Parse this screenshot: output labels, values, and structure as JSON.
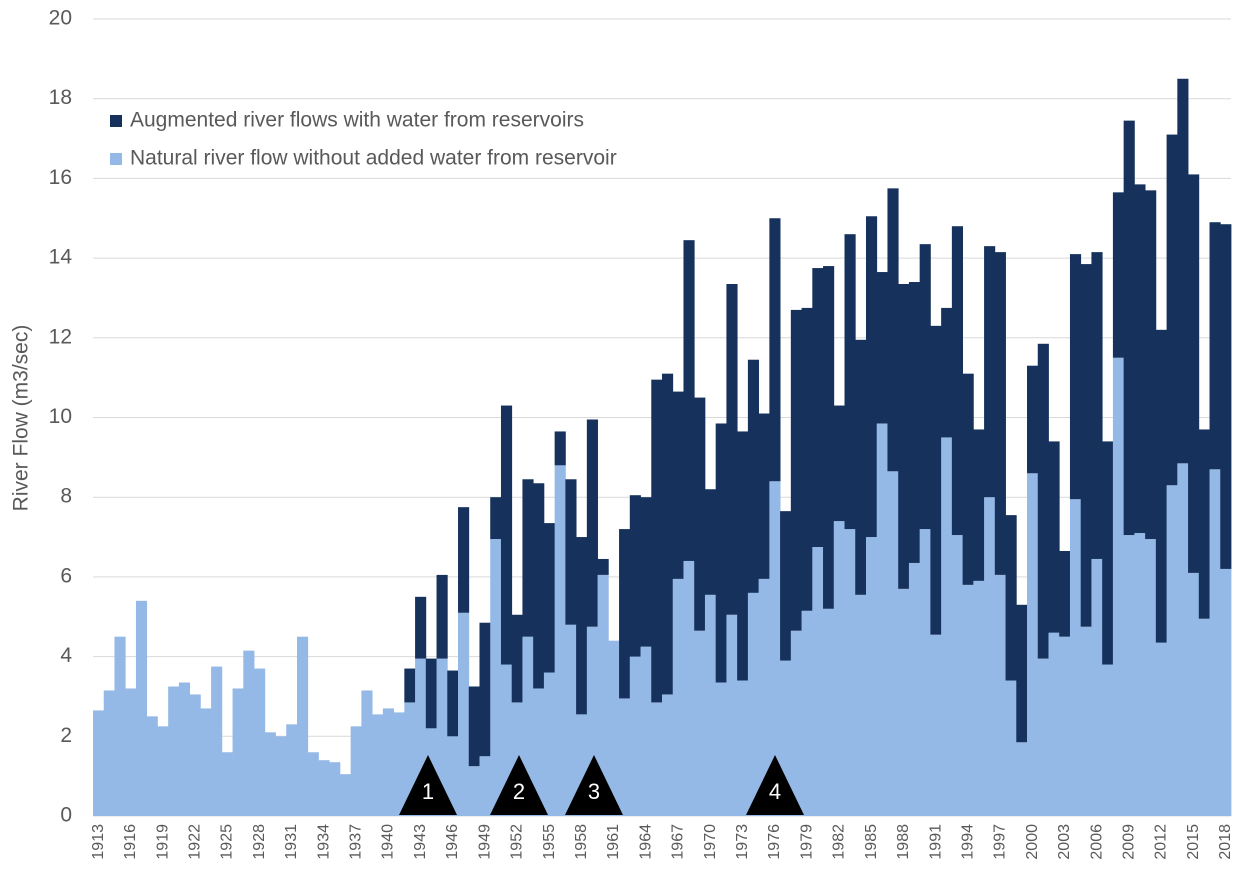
{
  "chart_data": {
    "type": "stacked_bar",
    "y_label": "River Flow (m3/sec)",
    "categories": [
      "1913",
      null,
      null,
      "1916",
      null,
      null,
      "1919",
      null,
      null,
      "1922",
      null,
      null,
      "1925",
      null,
      null,
      "1928",
      null,
      null,
      "1931",
      null,
      null,
      "1934",
      null,
      null,
      "1937",
      null,
      null,
      "1940",
      null,
      null,
      "1943",
      null,
      null,
      "1946",
      null,
      null,
      "1949",
      null,
      null,
      "1952",
      null,
      null,
      "1955",
      null,
      null,
      "1958",
      null,
      null,
      "1961",
      null,
      null,
      "1964",
      null,
      null,
      "1967",
      null,
      null,
      "1970",
      null,
      null,
      "1973",
      null,
      null,
      "1976",
      null,
      null,
      "1979",
      null,
      null,
      "1982",
      null,
      null,
      "1985",
      null,
      null,
      "1988",
      null,
      null,
      "1991",
      null,
      null,
      "1994",
      null,
      null,
      "1997",
      null,
      null,
      "2000",
      null,
      null,
      "2003",
      null,
      null,
      "2006",
      null,
      null,
      "2009",
      null,
      null,
      "2012",
      null,
      null,
      "2015",
      null,
      null,
      "2018"
    ],
    "series": [
      {
        "name": "Natural river flow without added water from reservoir",
        "color": "#95b9e7",
        "values": [
          2.65,
          3.15,
          4.5,
          3.2,
          5.4,
          2.5,
          2.25,
          3.25,
          3.35,
          3.05,
          2.7,
          3.75,
          1.6,
          3.2,
          4.15,
          3.7,
          2.1,
          2.0,
          2.3,
          4.5,
          1.6,
          1.4,
          1.35,
          1.05,
          2.25,
          3.15,
          2.55,
          2.7,
          2.6,
          2.85,
          3.95,
          2.2,
          3.95,
          2.0,
          5.1,
          1.25,
          1.5,
          6.95,
          3.8,
          2.85,
          4.5,
          3.2,
          3.6,
          8.8,
          4.8,
          2.55,
          4.75,
          6.05,
          4.4,
          2.95,
          4.0,
          4.25,
          2.85,
          3.05,
          5.95,
          6.4,
          4.65,
          5.55,
          3.35,
          5.05,
          3.4,
          5.6,
          5.95,
          8.4,
          3.9,
          4.65,
          5.15,
          6.75,
          5.2,
          7.4,
          7.2,
          5.55,
          7.0,
          9.85,
          8.65,
          5.7,
          6.35,
          7.2,
          4.55,
          9.5,
          7.05,
          5.8,
          5.9,
          8.0,
          6.05,
          3.4,
          1.85,
          8.6,
          3.95,
          4.6,
          4.5,
          7.95,
          4.75,
          6.45,
          3.8,
          11.5,
          7.05,
          7.1,
          6.95,
          4.35,
          8.3,
          8.85,
          6.1,
          4.95,
          8.7,
          6.2
        ]
      },
      {
        "name": "Augmented river flows with water from reservoirs",
        "color": "#16325c",
        "values": [
          0,
          0,
          0,
          0,
          0,
          0,
          0,
          0,
          0,
          0,
          0,
          0,
          0,
          0,
          0,
          0,
          0,
          0,
          0,
          0,
          0,
          0,
          0,
          0,
          0,
          0,
          0,
          0,
          0,
          0.85,
          1.55,
          1.75,
          2.1,
          1.65,
          2.65,
          2.0,
          3.35,
          1.05,
          6.5,
          2.2,
          3.95,
          5.15,
          3.75,
          0.85,
          3.65,
          4.45,
          5.2,
          0.4,
          0,
          4.25,
          4.05,
          3.75,
          8.1,
          8.05,
          4.7,
          8.05,
          5.85,
          2.65,
          6.5,
          8.3,
          6.25,
          5.85,
          4.15,
          6.6,
          3.75,
          8.05,
          7.6,
          7.0,
          8.6,
          2.9,
          7.4,
          6.4,
          8.05,
          3.8,
          7.1,
          7.65,
          7.05,
          7.15,
          7.75,
          3.25,
          7.75,
          5.3,
          3.8,
          6.3,
          8.1,
          4.15,
          3.45,
          2.7,
          7.9,
          4.8,
          2.15,
          6.15,
          9.1,
          7.7,
          5.6,
          4.15,
          10.4,
          8.75,
          8.75,
          7.85,
          8.8,
          9.65,
          10.0,
          4.75,
          6.2,
          8.65
        ]
      }
    ],
    "ylim": [
      0,
      20
    ],
    "yticks": [
      0,
      2,
      4,
      6,
      8,
      10,
      12,
      14,
      16,
      18,
      20
    ],
    "grid": true,
    "legend": "top-left",
    "annotations": [
      "1",
      "2",
      "3",
      "4"
    ]
  }
}
